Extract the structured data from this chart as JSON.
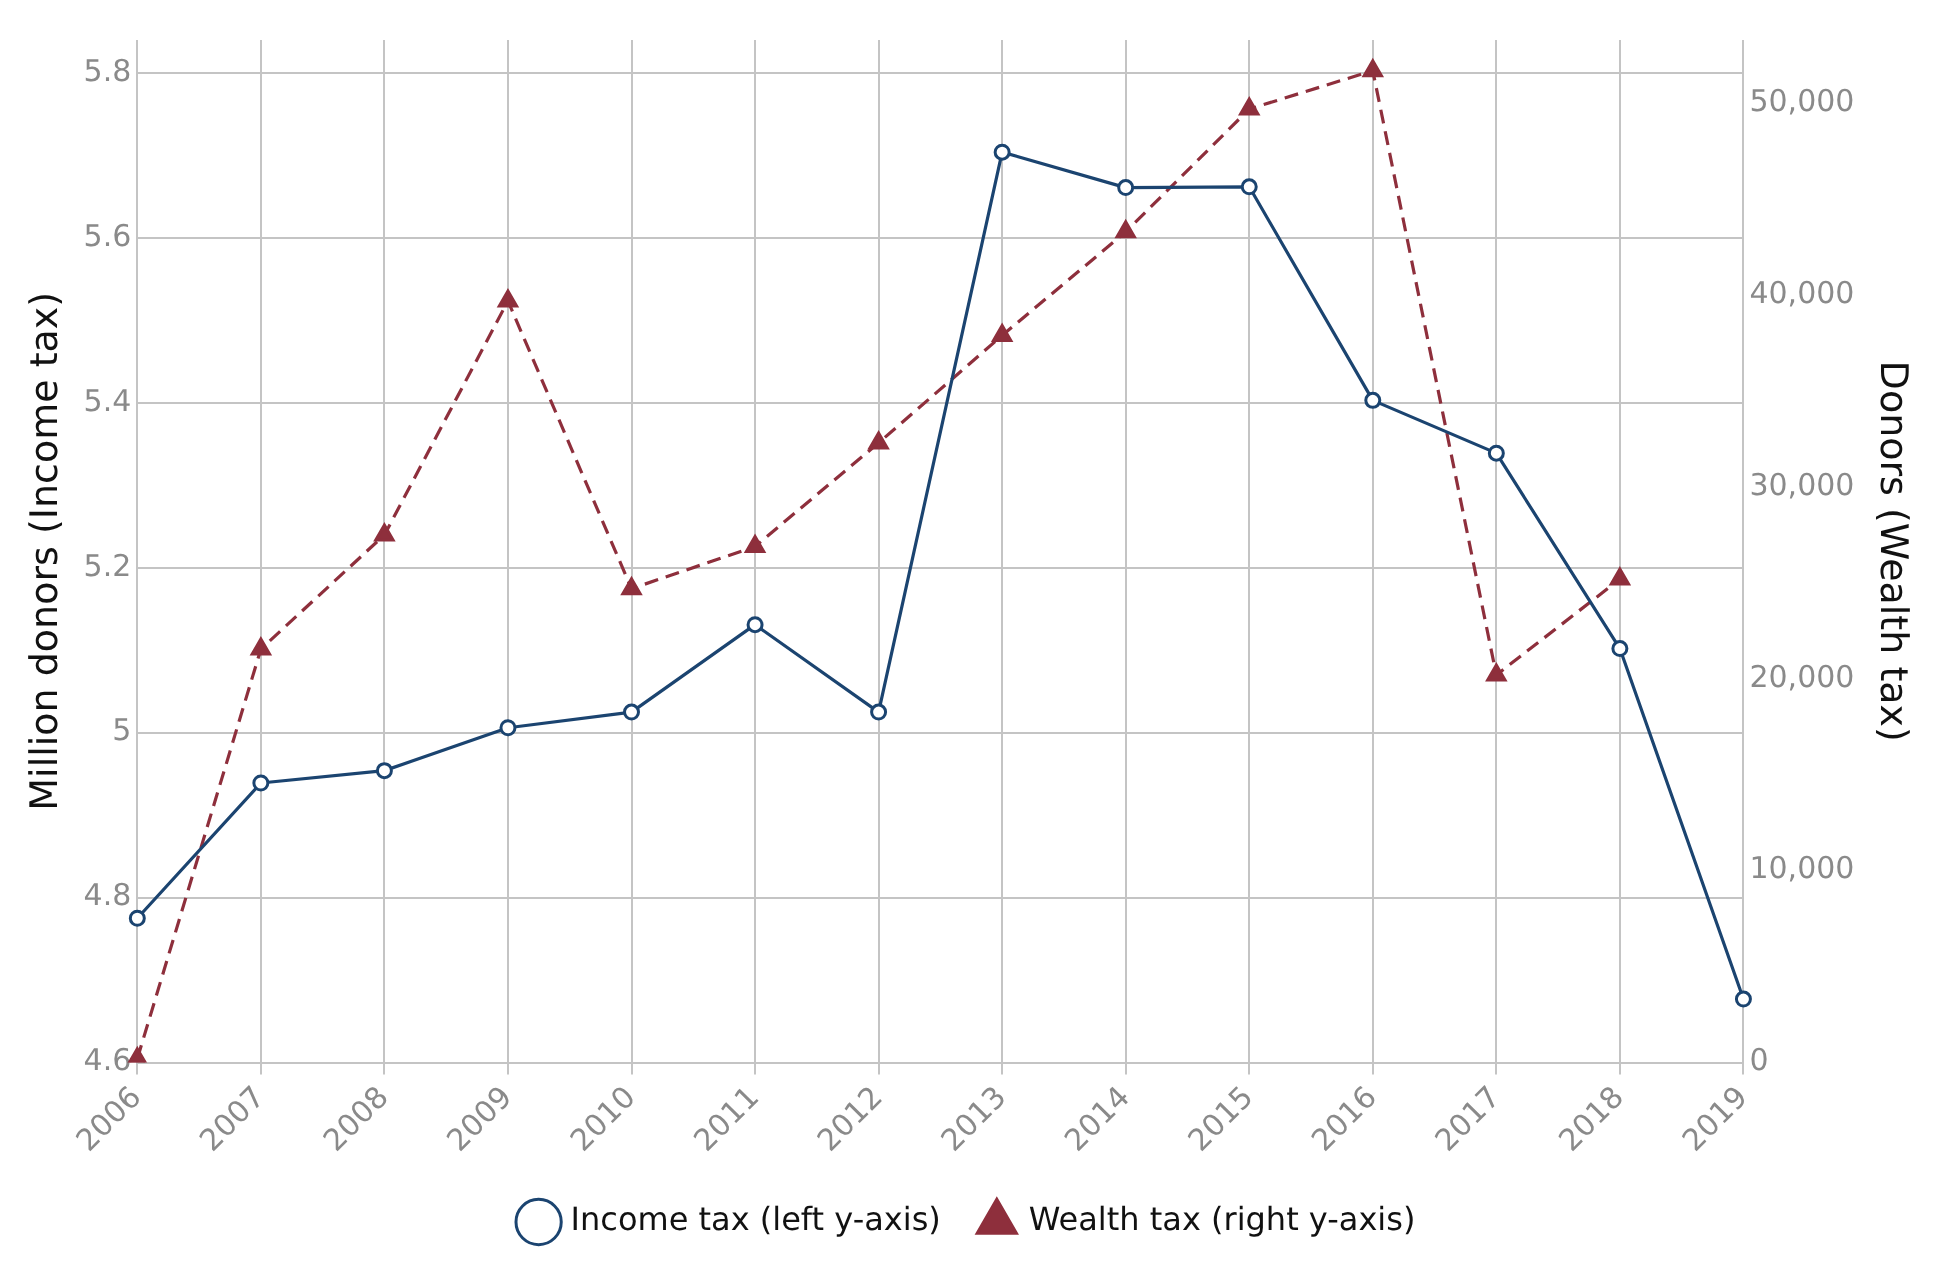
{
  "chart_data": {
    "type": "line",
    "xlabel": null,
    "ylabel": "Million donors (Income tax)",
    "y2label": "Donors (Wealth tax)",
    "categories": [
      "2006",
      "2007",
      "2008",
      "2009",
      "2010",
      "2011",
      "2012",
      "2013",
      "2014",
      "2015",
      "2016",
      "2017",
      "2018",
      "2019"
    ],
    "series": [
      {
        "name": "Income tax (left y-axis)",
        "color": "#1b4470",
        "marker": "circle",
        "line_style": "solid",
        "values": [
          4.775,
          4.939,
          4.954,
          5.006,
          5.025,
          5.131,
          5.025,
          5.704,
          5.661,
          5.662,
          5.403,
          5.339,
          5.102,
          4.677
        ]
      },
      {
        "name": "Wealth tax (right y-axis)",
        "color": "#8e2f3c",
        "marker": "triangle",
        "line_style": "dashed",
        "axis": "y2",
        "values": [
          200,
          21550,
          27500,
          39700,
          24700,
          26900,
          32300,
          37900,
          43300,
          49700,
          51700,
          20200,
          25200,
          null
        ]
      }
    ],
    "ylim": [
      4.6,
      5.84
    ],
    "yticks": [
      4.6,
      4.8,
      5,
      5.2,
      5.4,
      5.6,
      5.8
    ],
    "y2lim": [
      0,
      53300
    ],
    "y2ticks": [
      0,
      {
        "value": 10000,
        "label": "10,000"
      },
      {
        "value": 20000,
        "label": "20,000"
      },
      {
        "value": 30000,
        "label": "30,000"
      },
      {
        "value": 40000,
        "label": "40,000"
      },
      {
        "value": 50000,
        "label": "50,000"
      }
    ],
    "grid": true,
    "legend": "bottom"
  }
}
